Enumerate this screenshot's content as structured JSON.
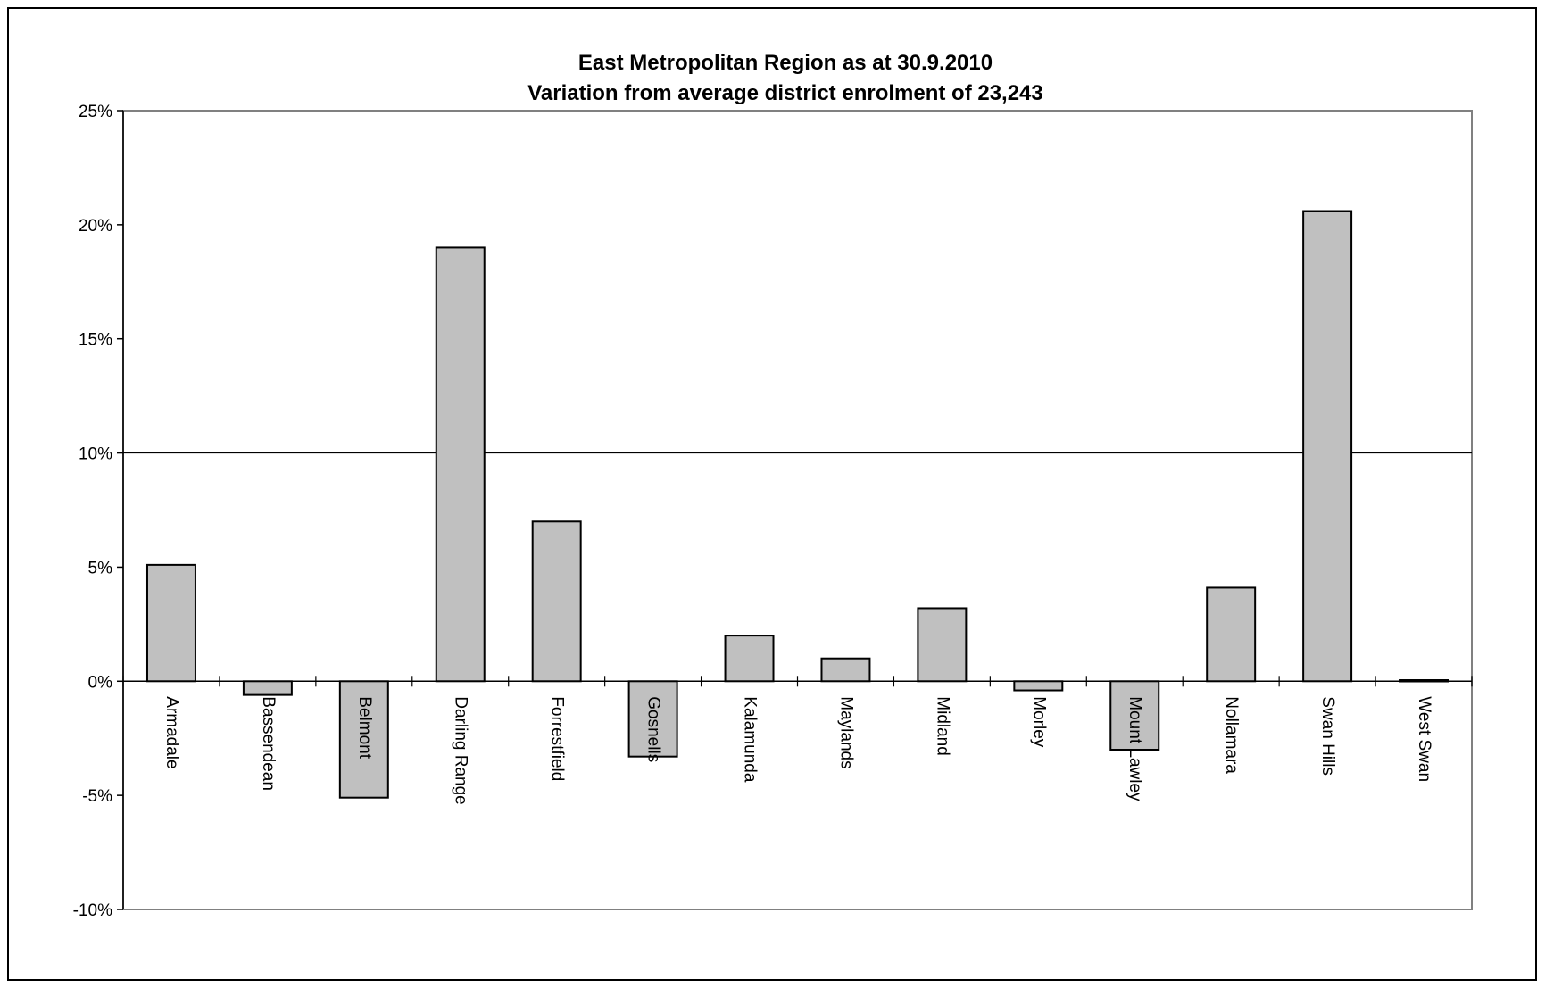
{
  "chart_data": {
    "type": "bar",
    "title_lines": [
      "East Metropolitan Region as at 30.9.2010",
      "Variation from average district enrolment of 23,243"
    ],
    "xlabel": "",
    "ylabel": "",
    "ylim": [
      -10,
      25
    ],
    "yticks": [
      -10,
      -5,
      0,
      5,
      10,
      15,
      20,
      25
    ],
    "ytick_labels": [
      "-10%",
      "-5%",
      "0%",
      "5%",
      "10%",
      "15%",
      "20%",
      "25%"
    ],
    "reference_line": 10,
    "categories": [
      "Armadale",
      "Bassendean",
      "Belmont",
      "Darling Range",
      "Forrestfield",
      "Gosnells",
      "Kalamunda",
      "Maylands",
      "Midland",
      "Morley",
      "Mount Lawley",
      "Nollamara",
      "Swan Hills",
      "West Swan"
    ],
    "values": [
      5.1,
      -0.6,
      -5.1,
      19.0,
      7.0,
      -3.3,
      2.0,
      1.0,
      3.2,
      -0.4,
      -3.0,
      4.1,
      20.6,
      0.05
    ],
    "bar_color": "#c0c0c0",
    "grid": false,
    "legend": "none"
  }
}
